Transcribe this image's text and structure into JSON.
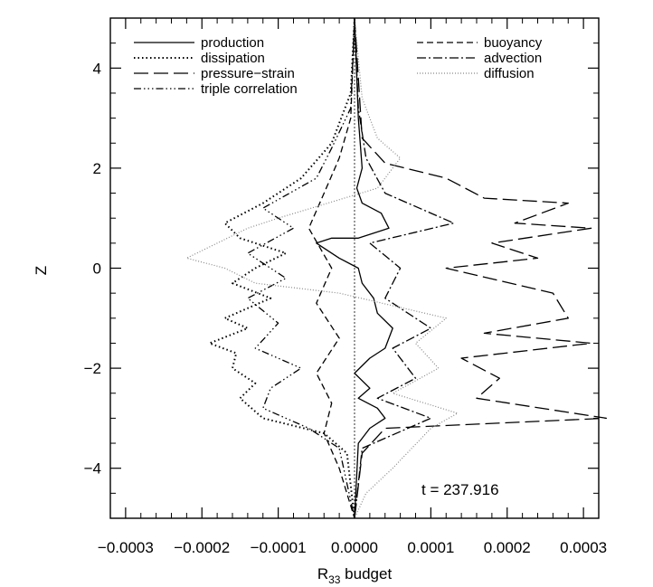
{
  "chart_data": {
    "type": "line",
    "title": "",
    "xlabel": "R",
    "xlabel_sub": "33",
    "xlabel_suffix": " budget",
    "ylabel": "Z",
    "xlim": [
      -0.00032,
      0.00032
    ],
    "ylim": [
      -5,
      5
    ],
    "xticks": [
      -0.0003,
      -0.0002,
      -0.0001,
      0.0,
      0.0001,
      0.0002,
      0.0003
    ],
    "xtick_labels": [
      "−0.0003",
      "−0.0002",
      "−0.0001",
      "0.0000",
      "0.0001",
      "0.0002",
      "0.0003"
    ],
    "yticks": [
      -4,
      -2,
      0,
      2,
      4
    ],
    "ytick_labels": [
      "−4",
      "−2",
      "0",
      "2",
      "4"
    ],
    "annotation": "t = 237.916",
    "legend_left": [
      "production",
      "dissipation",
      "pressure−strain",
      "triple correlation"
    ],
    "legend_right": [
      "buoyancy",
      "advection",
      "diffusion"
    ],
    "series": [
      {
        "name": "production",
        "style": "solid",
        "color": "#000000",
        "x": [
          0.0,
          5e-06,
          1e-05,
          3e-06,
          1e-05,
          3.5e-05,
          4.5e-05,
          5e-06,
          -3e-05,
          -5e-05,
          -2e-05,
          5e-06,
          1e-05,
          2.5e-05,
          3e-05,
          5e-05,
          4e-05,
          2e-05,
          0.0,
          2e-05,
          5e-06,
          3e-05,
          4e-05,
          2e-05,
          5e-06,
          0.0
        ],
        "y": [
          5.0,
          3.0,
          2.0,
          1.6,
          1.3,
          1.1,
          0.8,
          0.6,
          0.6,
          0.5,
          0.2,
          0.0,
          -0.3,
          -0.6,
          -0.9,
          -1.2,
          -1.6,
          -1.8,
          -2.1,
          -2.4,
          -2.6,
          -2.8,
          -3.0,
          -3.2,
          -3.5,
          -5.0
        ]
      },
      {
        "name": "dissipation",
        "style": "dotted",
        "color": "#000000",
        "x": [
          0.0,
          -5e-06,
          -3e-05,
          -7e-05,
          -0.00012,
          -0.00017,
          -0.00015,
          -9e-05,
          -0.00013,
          -0.00016,
          -0.00011,
          -0.00017,
          -0.00014,
          -0.00019,
          -0.000155,
          -0.00016,
          -0.00013,
          -0.00015,
          -0.00012,
          -4e-05,
          -1e-05,
          0.0
        ],
        "y": [
          5.0,
          3.5,
          2.5,
          1.8,
          1.3,
          0.9,
          0.6,
          0.3,
          0.0,
          -0.3,
          -0.6,
          -1.0,
          -1.2,
          -1.5,
          -1.7,
          -2.0,
          -2.3,
          -2.6,
          -3.0,
          -3.3,
          -3.7,
          -5.0
        ]
      },
      {
        "name": "pressure−strain",
        "style": "long-dash",
        "color": "#000000",
        "x": [
          0.0,
          5e-06,
          1e-05,
          4e-05,
          0.00012,
          0.00017,
          0.00028,
          0.00021,
          0.00031,
          0.00018,
          0.00024,
          0.00012,
          0.00026,
          0.00028,
          0.00017,
          0.00031,
          0.00014,
          0.00019,
          0.00016,
          0.00033,
          4e-05,
          1e-05,
          0.0
        ],
        "y": [
          5.0,
          3.8,
          2.6,
          2.1,
          1.8,
          1.4,
          1.3,
          0.9,
          0.8,
          0.5,
          0.2,
          0.0,
          -0.5,
          -1.0,
          -1.3,
          -1.5,
          -1.8,
          -2.2,
          -2.6,
          -3.0,
          -3.2,
          -3.7,
          -5.0
        ]
      },
      {
        "name": "triple correlation",
        "style": "dash-dot-dot",
        "color": "#000000",
        "x": [
          0.0,
          -5e-06,
          -3e-05,
          -5e-05,
          -0.00012,
          -8e-05,
          -0.00014,
          -9e-05,
          -0.00014,
          -0.0001,
          -0.00013,
          -7e-05,
          -0.00011,
          -0.00012,
          -6e-05,
          -2e-05,
          0.0
        ],
        "y": [
          5.0,
          3.2,
          2.4,
          1.8,
          1.2,
          0.8,
          0.3,
          -0.2,
          -0.6,
          -1.1,
          -1.6,
          -2.0,
          -2.4,
          -2.8,
          -3.2,
          -3.6,
          -5.0
        ]
      },
      {
        "name": "buoyancy",
        "style": "dash",
        "color": "#000000",
        "x": [
          0.0,
          -5e-06,
          -2e-05,
          -4e-05,
          -6e-05,
          -3e-05,
          -5e-05,
          -2e-05,
          -5e-05,
          -3e-05,
          -4e-05,
          -2e-05,
          0.0
        ],
        "y": [
          5.0,
          3.0,
          2.2,
          1.5,
          0.8,
          0.0,
          -0.7,
          -1.4,
          -2.1,
          -2.7,
          -3.3,
          -4.0,
          -5.0
        ]
      },
      {
        "name": "advection",
        "style": "dash-dot",
        "color": "#000000",
        "x": [
          0.0,
          5e-06,
          1.5e-05,
          4e-05,
          0.00013,
          2e-05,
          6e-05,
          4e-05,
          0.0001,
          5e-05,
          8e-05,
          3e-05,
          0.0001,
          1e-05,
          0.0
        ],
        "y": [
          5.0,
          3.2,
          2.2,
          1.5,
          0.9,
          0.5,
          0.0,
          -0.6,
          -1.2,
          -1.6,
          -2.2,
          -2.6,
          -3.0,
          -3.6,
          -5.0
        ]
      },
      {
        "name": "diffusion",
        "style": "fine-dotted",
        "color": "#888888",
        "x": [
          0.0,
          1e-05,
          3e-05,
          6e-05,
          3e-05,
          -0.0001,
          -0.00014,
          -0.00022,
          -0.00017,
          -0.00013,
          -2e-05,
          0.00012,
          8e-05,
          0.00011,
          5e-05,
          0.000135,
          0.0001,
          5e-05,
          1.5e-05,
          0.0
        ],
        "y": [
          5.0,
          3.4,
          2.6,
          2.2,
          1.6,
          1.0,
          0.8,
          0.2,
          0.0,
          -0.3,
          -0.5,
          -1.0,
          -1.5,
          -2.0,
          -2.5,
          -2.9,
          -3.2,
          -4.0,
          -4.5,
          -5.0
        ]
      }
    ]
  }
}
